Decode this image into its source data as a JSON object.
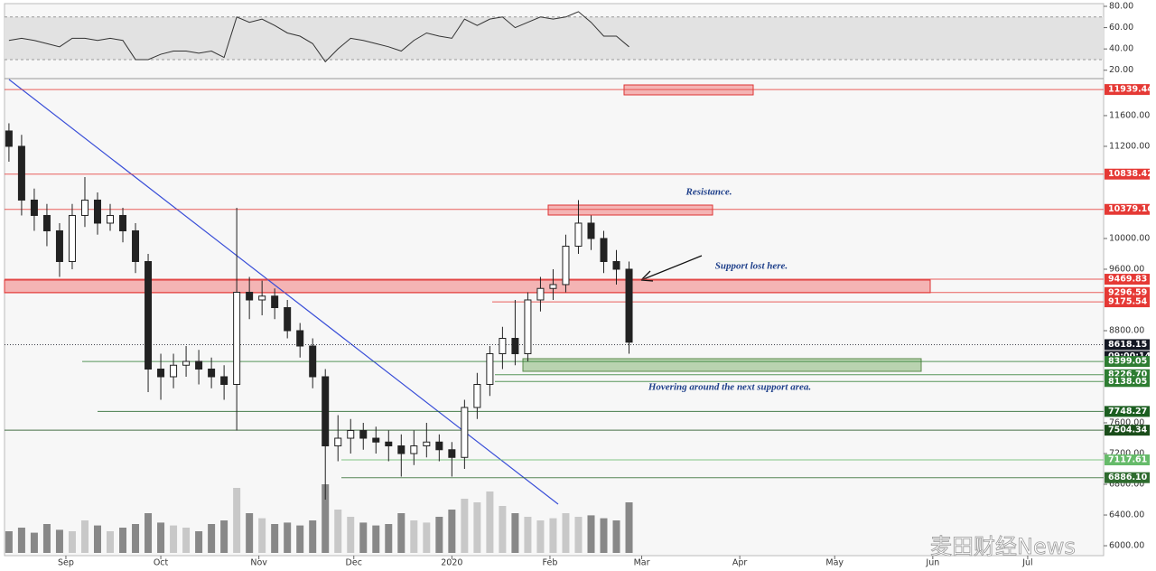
{
  "chart_data": {
    "type": "candlestick",
    "x": [
      -18,
      -14,
      -10,
      -6,
      -2,
      2,
      6,
      10,
      14,
      18,
      22,
      26,
      30,
      34,
      38,
      42,
      46,
      50,
      54,
      58,
      62,
      66,
      70,
      74,
      78,
      82,
      86,
      90,
      94,
      98,
      102,
      106,
      110,
      114,
      118,
      122,
      126,
      130,
      134,
      138,
      142,
      146,
      150,
      154,
      158,
      162,
      166,
      170,
      174,
      178
    ],
    "open": [
      11400,
      11200,
      10500,
      10300,
      10100,
      9700,
      10300,
      10500,
      10200,
      10300,
      10100,
      9700,
      8300,
      8200,
      8350,
      8400,
      8300,
      8200,
      8100,
      9300,
      9200,
      9250,
      9100,
      8800,
      8600,
      8200,
      7300,
      7400,
      7500,
      7400,
      7350,
      7300,
      7200,
      7300,
      7350,
      7250,
      7150,
      7800,
      8100,
      8500,
      8700,
      8500,
      9200,
      9350,
      9400,
      9900,
      10200,
      10000,
      9700,
      9600
    ],
    "high": [
      11500,
      11350,
      10650,
      10450,
      10200,
      10450,
      10800,
      10600,
      10450,
      10400,
      10200,
      9800,
      8500,
      8500,
      8600,
      8550,
      8450,
      8350,
      10400,
      9500,
      9450,
      9350,
      9200,
      8900,
      8700,
      8300,
      7700,
      7650,
      7600,
      7550,
      7500,
      7450,
      7500,
      7600,
      7450,
      7350,
      7900,
      8250,
      8600,
      8850,
      9200,
      9300,
      9500,
      9600,
      10050,
      10500,
      10300,
      10100,
      9850,
      9700
    ],
    "low": [
      11000,
      10300,
      10100,
      9900,
      9500,
      9600,
      10150,
      10050,
      10100,
      9950,
      9550,
      8000,
      7900,
      8050,
      8200,
      8100,
      8050,
      7900,
      7500,
      8950,
      9000,
      8950,
      8700,
      8450,
      8050,
      6600,
      7100,
      7200,
      7250,
      7200,
      7100,
      6900,
      7050,
      7150,
      7100,
      6900,
      7000,
      7650,
      7950,
      8300,
      8350,
      8400,
      9050,
      9200,
      9300,
      9800,
      9850,
      9550,
      9400,
      8500
    ],
    "close": [
      11200,
      10500,
      10300,
      10100,
      9700,
      10300,
      10500,
      10200,
      10300,
      10100,
      9700,
      8300,
      8200,
      8350,
      8400,
      8300,
      8200,
      8100,
      9300,
      9200,
      9250,
      9100,
      8800,
      8600,
      8200,
      7300,
      7400,
      7500,
      7400,
      7350,
      7300,
      7200,
      7300,
      7350,
      7250,
      7150,
      7800,
      8100,
      8500,
      8700,
      8500,
      9200,
      9350,
      9400,
      9900,
      10200,
      10000,
      9700,
      9600,
      8650
    ],
    "volume": [
      30,
      35,
      28,
      40,
      32,
      30,
      45,
      38,
      30,
      35,
      40,
      55,
      42,
      38,
      35,
      30,
      40,
      45,
      90,
      55,
      48,
      40,
      42,
      38,
      45,
      95,
      60,
      50,
      42,
      38,
      40,
      55,
      45,
      42,
      50,
      60,
      75,
      70,
      85,
      65,
      55,
      50,
      45,
      48,
      55,
      50,
      52,
      48,
      45,
      70
    ],
    "rsi": [
      48,
      50,
      48,
      45,
      42,
      50,
      50,
      48,
      50,
      48,
      30,
      30,
      35,
      38,
      38,
      36,
      38,
      32,
      70,
      65,
      68,
      62,
      55,
      52,
      45,
      28,
      40,
      50,
      48,
      45,
      42,
      38,
      48,
      55,
      52,
      50,
      68,
      62,
      68,
      70,
      60,
      65,
      70,
      68,
      70,
      75,
      65,
      52,
      52,
      42
    ],
    "xlim": [
      -19.4,
      328
    ],
    "xticks": [
      {
        "value": 0,
        "label": "Sep"
      },
      {
        "value": 30,
        "label": "Oct"
      },
      {
        "value": 61,
        "label": "Nov"
      },
      {
        "value": 91,
        "label": "Dec"
      },
      {
        "value": 122,
        "label": "2020"
      },
      {
        "value": 153,
        "label": "Feb"
      },
      {
        "value": 182,
        "label": "Mar"
      },
      {
        "value": 213,
        "label": "Apr"
      },
      {
        "value": 243,
        "label": "May"
      },
      {
        "value": 274,
        "label": "Jun"
      },
      {
        "value": 304,
        "label": "Jul"
      }
    ],
    "ylim": [
      5871,
      12070
    ],
    "yticks": [
      {
        "value": 11600,
        "label": "11600.00"
      },
      {
        "value": 11200,
        "label": "11200.00"
      },
      {
        "value": 10000,
        "label": "10000.00"
      },
      {
        "value": 9600,
        "label": "9600.00"
      },
      {
        "value": 8800,
        "label": "8800.00"
      },
      {
        "value": 7600,
        "label": "7600.00"
      },
      {
        "value": 7200,
        "label": "7200.00"
      },
      {
        "value": 6800,
        "label": "6800.00"
      },
      {
        "value": 6400,
        "label": "6400.00"
      },
      {
        "value": 6000,
        "label": "6000.00"
      }
    ],
    "rsi_lim": [
      13,
      81.7
    ],
    "rsi_ticks": [
      {
        "value": 80,
        "label": "80.00"
      },
      {
        "value": 60,
        "label": "60.00"
      },
      {
        "value": 40,
        "label": "40.00"
      },
      {
        "value": 20,
        "label": "20.00"
      }
    ],
    "rsi_band": [
      30,
      70
    ],
    "levels": [
      {
        "value": 11939.44,
        "label": "11939.44",
        "color": "#e53935"
      },
      {
        "value": 10838.42,
        "label": "10838.42",
        "color": "#e53935"
      },
      {
        "value": 10379.16,
        "label": "10379.16",
        "color": "#e53935"
      },
      {
        "value": 9469.83,
        "label": "9469.83",
        "color": "#e53935"
      },
      {
        "value": 9296.59,
        "label": "9296.59",
        "color": "#e53935"
      },
      {
        "value": 9175.54,
        "label": "9175.54",
        "color": "#e53935"
      },
      {
        "value": 8618.15,
        "label": "8618.15",
        "color": "#131722"
      },
      {
        "value": 8399.05,
        "label": "8399.05",
        "color": "#2e7d32"
      },
      {
        "value": 8226.7,
        "label": "8226.70",
        "color": "#2e7d32"
      },
      {
        "value": 8138.05,
        "label": "8138.05",
        "color": "#2e7d32"
      },
      {
        "value": 7748.27,
        "label": "7748.27",
        "color": "#1b5e20"
      },
      {
        "value": 7504.34,
        "label": "7504.34",
        "color": "#1a4d1a"
      },
      {
        "value": 7117.61,
        "label": "7117.61",
        "color": "#66bb6a"
      },
      {
        "value": 6886.1,
        "label": "6886.10",
        "color": "#2e6b2e"
      }
    ],
    "countdown": "09:00:14",
    "annotations": [
      "Resistance.",
      "Support lost here.",
      "Hovering around the next support area."
    ],
    "watermark": "麦田财经News"
  }
}
